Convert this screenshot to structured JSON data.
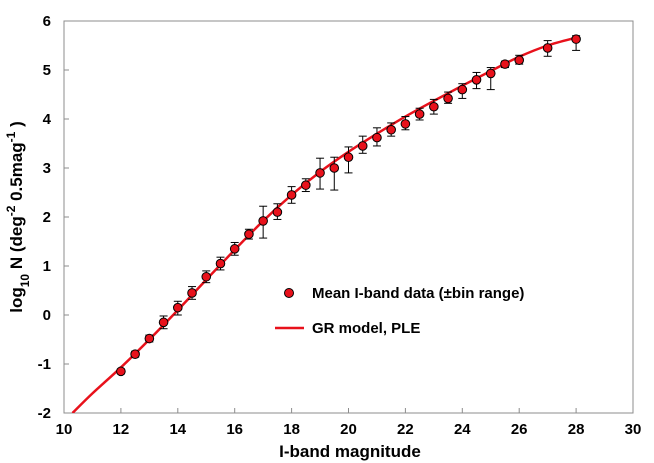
{
  "chart_data": {
    "type": "scatter",
    "xlabel": "I-band magnitude",
    "ylabel": {
      "base": "log",
      "base_sub": "10",
      "main": " N (deg",
      "sup1": "-2",
      "middle": " 0.5mag",
      "sup2": "-1",
      "end": " )"
    },
    "xlim": [
      10,
      30
    ],
    "ylim": [
      -2,
      6
    ],
    "x_ticks": [
      10,
      12,
      14,
      16,
      18,
      20,
      22,
      24,
      26,
      28,
      30
    ],
    "y_ticks": [
      -2,
      -1,
      0,
      1,
      2,
      3,
      4,
      5,
      6
    ],
    "grid": false,
    "legend_position": "center-right",
    "series": [
      {
        "name": "Mean I-band data (±bin range)",
        "kind": "points-with-errorbars",
        "color": "#e8111b",
        "points": [
          {
            "x": 12.0,
            "y": -1.15,
            "lo": -1.2,
            "hi": -1.1
          },
          {
            "x": 12.5,
            "y": -0.8,
            "lo": -0.86,
            "hi": -0.74
          },
          {
            "x": 13.0,
            "y": -0.48,
            "lo": -0.55,
            "hi": -0.41
          },
          {
            "x": 13.5,
            "y": -0.15,
            "lo": -0.28,
            "hi": -0.02
          },
          {
            "x": 14.0,
            "y": 0.15,
            "lo": 0.0,
            "hi": 0.28
          },
          {
            "x": 14.5,
            "y": 0.45,
            "lo": 0.32,
            "hi": 0.58
          },
          {
            "x": 15.0,
            "y": 0.78,
            "lo": 0.66,
            "hi": 0.9
          },
          {
            "x": 15.5,
            "y": 1.05,
            "lo": 0.92,
            "hi": 1.18
          },
          {
            "x": 16.0,
            "y": 1.35,
            "lo": 1.22,
            "hi": 1.48
          },
          {
            "x": 16.5,
            "y": 1.65,
            "lo": 1.55,
            "hi": 1.75
          },
          {
            "x": 17.0,
            "y": 1.92,
            "lo": 1.57,
            "hi": 2.22
          },
          {
            "x": 17.5,
            "y": 2.1,
            "lo": 1.95,
            "hi": 2.27
          },
          {
            "x": 18.0,
            "y": 2.45,
            "lo": 2.28,
            "hi": 2.62
          },
          {
            "x": 18.5,
            "y": 2.65,
            "lo": 2.52,
            "hi": 2.78
          },
          {
            "x": 19.0,
            "y": 2.9,
            "lo": 2.57,
            "hi": 3.2
          },
          {
            "x": 19.5,
            "y": 3.0,
            "lo": 2.55,
            "hi": 3.22
          },
          {
            "x": 20.0,
            "y": 3.22,
            "lo": 2.9,
            "hi": 3.43
          },
          {
            "x": 20.5,
            "y": 3.45,
            "lo": 3.3,
            "hi": 3.65
          },
          {
            "x": 21.0,
            "y": 3.62,
            "lo": 3.45,
            "hi": 3.82
          },
          {
            "x": 21.5,
            "y": 3.78,
            "lo": 3.65,
            "hi": 3.92
          },
          {
            "x": 22.0,
            "y": 3.9,
            "lo": 3.78,
            "hi": 4.05
          },
          {
            "x": 22.5,
            "y": 4.1,
            "lo": 3.98,
            "hi": 4.22
          },
          {
            "x": 23.0,
            "y": 4.25,
            "lo": 4.1,
            "hi": 4.4
          },
          {
            "x": 23.5,
            "y": 4.42,
            "lo": 4.32,
            "hi": 4.55
          },
          {
            "x": 24.0,
            "y": 4.6,
            "lo": 4.42,
            "hi": 4.72
          },
          {
            "x": 24.5,
            "y": 4.8,
            "lo": 4.62,
            "hi": 4.95
          },
          {
            "x": 25.0,
            "y": 4.93,
            "lo": 4.6,
            "hi": 5.05
          },
          {
            "x": 25.5,
            "y": 5.12,
            "lo": 5.05,
            "hi": 5.18
          },
          {
            "x": 26.0,
            "y": 5.2,
            "lo": 5.12,
            "hi": 5.3
          },
          {
            "x": 27.0,
            "y": 5.45,
            "lo": 5.28,
            "hi": 5.6
          },
          {
            "x": 28.0,
            "y": 5.63,
            "lo": 5.4,
            "hi": 5.7
          }
        ]
      },
      {
        "name": "GR model, PLE",
        "kind": "line",
        "color": "#e8111b",
        "x": [
          10.3,
          11.0,
          12.0,
          13.0,
          14.0,
          15.0,
          16.0,
          17.0,
          18.0,
          19.0,
          20.0,
          21.0,
          22.0,
          23.0,
          24.0,
          25.0,
          26.0,
          27.0,
          28.0
        ],
        "y": [
          -2.0,
          -1.6,
          -1.07,
          -0.5,
          0.1,
          0.72,
          1.33,
          1.92,
          2.45,
          2.92,
          3.33,
          3.7,
          4.05,
          4.37,
          4.68,
          4.98,
          5.27,
          5.5,
          5.66
        ]
      }
    ]
  }
}
